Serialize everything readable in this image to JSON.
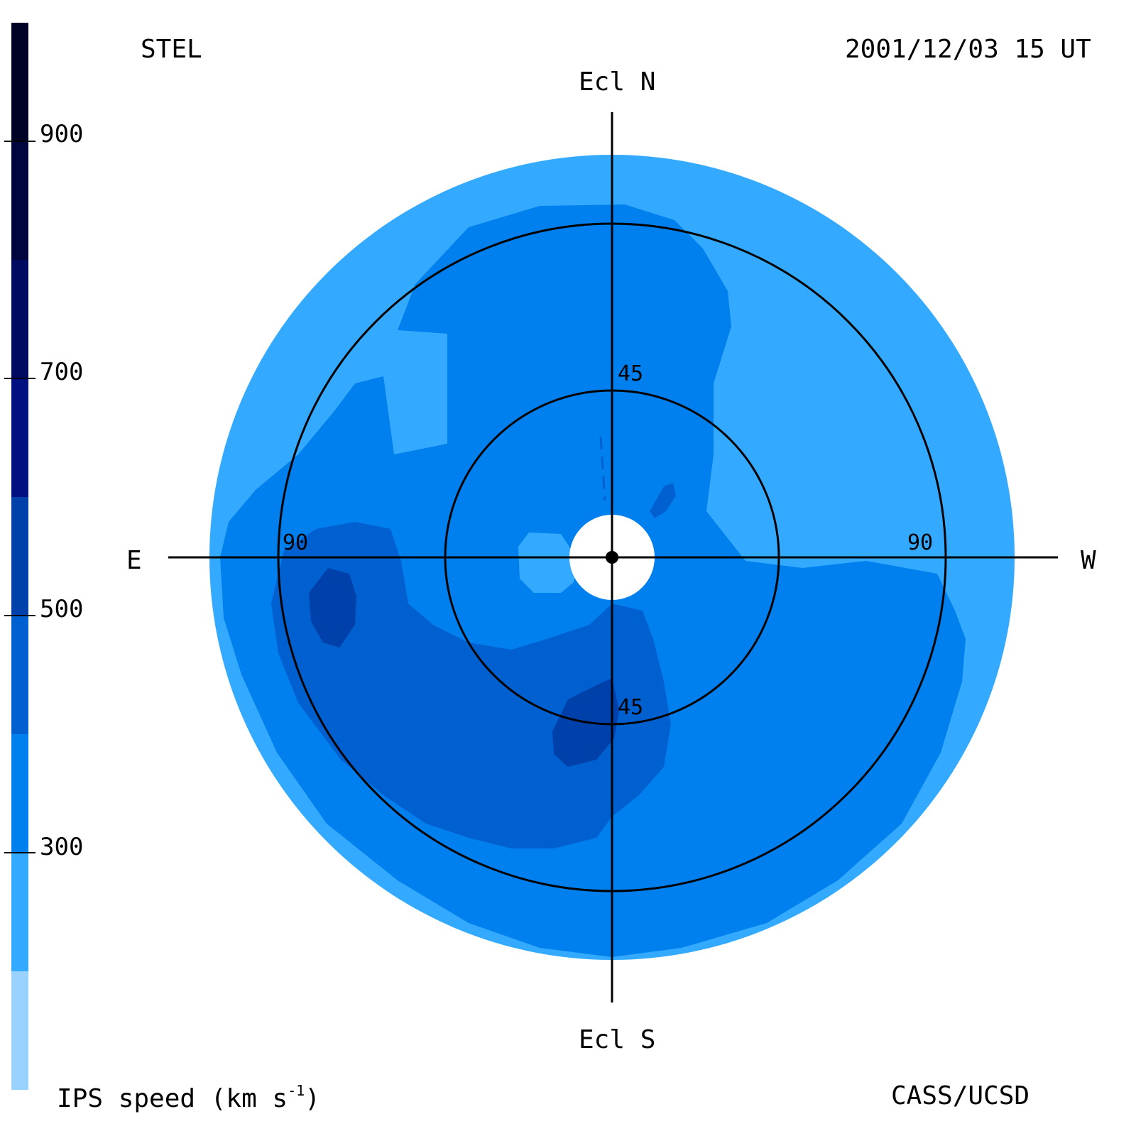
{
  "header": {
    "observatory": "STEL",
    "datetime": "2001/12/03 15 UT"
  },
  "footer": {
    "colorbar_title": "IPS speed (km s",
    "colorbar_title_exp": "-1",
    "colorbar_title_close": ")",
    "credit": "CASS/UCSD"
  },
  "axes": {
    "north": "Ecl N",
    "south": "Ecl S",
    "east": "E",
    "west": "W"
  },
  "rings": {
    "inner_top": "45",
    "inner_bottom": "45",
    "outer_left": "90",
    "outer_right": "90"
  },
  "colorbar": {
    "ticks": [
      "900",
      "700",
      "500",
      "300"
    ],
    "tick_values": [
      900,
      700,
      500,
      300
    ],
    "range": [
      100,
      1000
    ],
    "bands": [
      {
        "from": 100,
        "to": 200,
        "color": "#99d1ff"
      },
      {
        "from": 200,
        "to": 300,
        "color": "#33aaff"
      },
      {
        "from": 300,
        "to": 400,
        "color": "#0080ee"
      },
      {
        "from": 400,
        "to": 500,
        "color": "#0060d0"
      },
      {
        "from": 500,
        "to": 600,
        "color": "#0040aa"
      },
      {
        "from": 600,
        "to": 700,
        "color": "#001080"
      },
      {
        "from": 700,
        "to": 800,
        "color": "#000a60"
      },
      {
        "from": 800,
        "to": 900,
        "color": "#000540"
      },
      {
        "from": 900,
        "to": 1000,
        "color": "#000325"
      }
    ]
  },
  "colors": {
    "speed_250": "#33aaff",
    "speed_350": "#0080ee",
    "speed_450": "#0060d0",
    "speed_550": "#0040aa"
  }
}
